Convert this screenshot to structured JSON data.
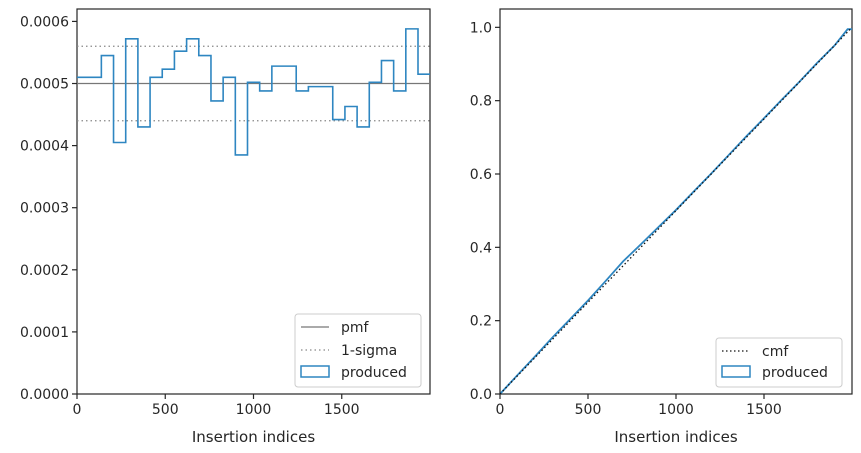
{
  "chart_data": [
    {
      "type": "step",
      "xlabel": "Insertion indices",
      "ylabel": "",
      "xlim": [
        0,
        2000
      ],
      "ylim": [
        0,
        0.00062
      ],
      "xticks": [
        0,
        500,
        1000,
        1500
      ],
      "xtick_labels": [
        "0",
        "500",
        "1000",
        "1500"
      ],
      "yticks": [
        0,
        0.0001,
        0.0002,
        0.0003,
        0.0004,
        0.0005,
        0.0006
      ],
      "ytick_labels": [
        "0.0000",
        "0.0001",
        "0.0002",
        "0.0003",
        "0.0004",
        "0.0005",
        "0.0006"
      ],
      "legend_position": "lower-right",
      "legend": [
        "pmf",
        "1-sigma",
        "produced"
      ],
      "reference_lines": [
        {
          "name": "pmf",
          "y": 0.0005,
          "style": "solid",
          "color": "#777777"
        },
        {
          "name": "1-sigma upper",
          "y": 0.00056,
          "style": "dotted",
          "color": "#888888"
        },
        {
          "name": "1-sigma lower",
          "y": 0.00044,
          "style": "dotted",
          "color": "#888888"
        }
      ],
      "series": [
        {
          "name": "produced",
          "color": "#2e86c1",
          "bin_width": 69,
          "bin_starts": [
            0,
            69,
            138,
            207,
            276,
            345,
            414,
            483,
            552,
            621,
            690,
            759,
            828,
            897,
            966,
            1035,
            1104,
            1173,
            1242,
            1311,
            1380,
            1449,
            1518,
            1587,
            1656,
            1725,
            1794,
            1863,
            1932
          ],
          "values": [
            0.00051,
            0.00051,
            0.000545,
            0.000405,
            0.000572,
            0.00043,
            0.00051,
            0.000523,
            0.000552,
            0.000572,
            0.000545,
            0.000472,
            0.00051,
            0.000385,
            0.000502,
            0.000488,
            0.000528,
            0.000528,
            0.000488,
            0.000495,
            0.000495,
            0.000442,
            0.000463,
            0.00043,
            0.000502,
            0.000537,
            0.000488,
            0.000588,
            0.000515
          ]
        }
      ]
    },
    {
      "type": "line",
      "xlabel": "Insertion indices",
      "ylabel": "",
      "xlim": [
        0,
        2000
      ],
      "ylim": [
        0,
        1.05
      ],
      "xticks": [
        0,
        500,
        1000,
        1500
      ],
      "xtick_labels": [
        "0",
        "500",
        "1000",
        "1500"
      ],
      "yticks": [
        0,
        0.2,
        0.4,
        0.6,
        0.8,
        1.0
      ],
      "ytick_labels": [
        "0.0",
        "0.2",
        "0.4",
        "0.6",
        "0.8",
        "1.0"
      ],
      "legend_position": "lower-right",
      "legend": [
        "cmf",
        "produced"
      ],
      "series": [
        {
          "name": "cmf",
          "style": "dotted",
          "color": "#111111",
          "x": [
            0,
            2000
          ],
          "y": [
            0,
            1.0
          ]
        },
        {
          "name": "produced",
          "style": "solid",
          "color": "#2e86c1",
          "x": [
            0,
            100,
            200,
            300,
            400,
            500,
            600,
            700,
            800,
            900,
            1000,
            1100,
            1200,
            1300,
            1400,
            1500,
            1600,
            1700,
            1800,
            1900,
            1975,
            2000
          ],
          "y": [
            0,
            0.052,
            0.103,
            0.155,
            0.205,
            0.255,
            0.308,
            0.362,
            0.408,
            0.455,
            0.502,
            0.552,
            0.601,
            0.652,
            0.703,
            0.752,
            0.802,
            0.851,
            0.902,
            0.95,
            0.995,
            0.995
          ]
        }
      ]
    }
  ]
}
